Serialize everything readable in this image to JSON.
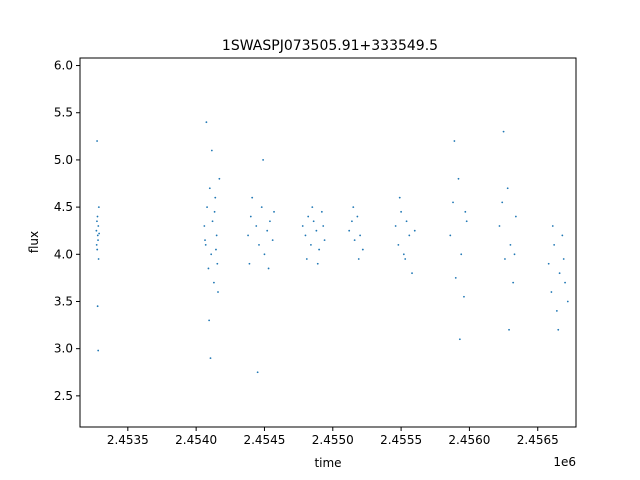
{
  "chart_data": {
    "type": "scatter",
    "title": "1SWASPJ073505.91+333549.5",
    "xlabel": "time",
    "ylabel": "flux",
    "x_offset_label": "1e6",
    "xlim": [
      2453150,
      2456780
    ],
    "ylim": [
      2.17,
      6.08
    ],
    "x_ticks": [
      2453500,
      2454000,
      2454500,
      2455000,
      2455500,
      2456000,
      2456500
    ],
    "x_tick_labels": [
      "2.4535",
      "2.4540",
      "2.4545",
      "2.4550",
      "2.4555",
      "2.4560",
      "2.4565"
    ],
    "y_ticks": [
      2.5,
      3.0,
      3.5,
      4.0,
      4.5,
      5.0,
      5.5,
      6.0
    ],
    "y_tick_labels": [
      "2.5",
      "3.0",
      "3.5",
      "4.0",
      "4.5",
      "5.0",
      "5.5",
      "6.0"
    ],
    "grid": false,
    "marker_color": "#1f77b4",
    "series": [
      {
        "x": [
          2453270,
          2453272,
          2453274,
          2453276,
          2453278,
          2453280,
          2453282,
          2453284,
          2453286,
          2453288,
          2453290,
          2453275,
          2453279,
          2453283,
          2454060,
          2454070,
          2454080,
          2454090,
          2454100,
          2454110,
          2454120,
          2454130,
          2454140,
          2454150,
          2454160,
          2454170,
          2454075,
          2454095,
          2454115,
          2454135,
          2454155,
          2454065,
          2454105,
          2454145,
          2454380,
          2454400,
          2454390,
          2454410,
          2454440,
          2454460,
          2454480,
          2454500,
          2454520,
          2454540,
          2454560,
          2454450,
          2454490,
          2454530,
          2454570,
          2454780,
          2454800,
          2454820,
          2454840,
          2454860,
          2454880,
          2454900,
          2454920,
          2454940,
          2454810,
          2454850,
          2454890,
          2454930,
          2455120,
          2455140,
          2455160,
          2455180,
          2455200,
          2455220,
          2455150,
          2455190,
          2455460,
          2455480,
          2455500,
          2455520,
          2455540,
          2455560,
          2455580,
          2455600,
          2455490,
          2455530,
          2455860,
          2455880,
          2455900,
          2455920,
          2455940,
          2455960,
          2455980,
          2455890,
          2455930,
          2455970,
          2456220,
          2456240,
          2456260,
          2456280,
          2456300,
          2456320,
          2456340,
          2456250,
          2456290,
          2456330,
          2456580,
          2456600,
          2456620,
          2456640,
          2456660,
          2456680,
          2456700,
          2456720,
          2456610,
          2456650,
          2456690
        ],
        "y": [
          4.25,
          4.1,
          4.35,
          4.05,
          4.4,
          4.2,
          4.15,
          4.3,
          3.95,
          4.5,
          4.22,
          5.2,
          3.45,
          2.98,
          4.3,
          4.1,
          4.5,
          3.85,
          4.7,
          4.0,
          4.35,
          3.7,
          4.6,
          4.2,
          3.6,
          4.8,
          5.4,
          3.3,
          5.1,
          4.45,
          3.9,
          4.15,
          2.9,
          4.05,
          4.2,
          4.4,
          3.9,
          4.6,
          4.3,
          4.1,
          4.5,
          4.0,
          4.25,
          4.35,
          4.15,
          2.75,
          5.0,
          3.85,
          4.45,
          4.3,
          4.2,
          4.4,
          4.1,
          4.35,
          4.25,
          4.05,
          4.45,
          4.15,
          3.95,
          4.5,
          3.9,
          4.3,
          4.25,
          4.35,
          4.15,
          4.4,
          4.2,
          4.05,
          4.5,
          3.95,
          4.3,
          4.1,
          4.45,
          4.0,
          4.35,
          4.2,
          3.8,
          4.25,
          4.6,
          3.95,
          4.2,
          4.55,
          3.75,
          4.8,
          4.0,
          3.55,
          4.35,
          5.2,
          3.1,
          4.45,
          4.3,
          4.55,
          3.95,
          4.7,
          4.1,
          3.7,
          4.4,
          5.3,
          3.2,
          4.0,
          3.9,
          3.6,
          4.1,
          3.4,
          3.8,
          4.2,
          3.7,
          3.5,
          4.3,
          3.2,
          3.95
        ]
      }
    ]
  }
}
